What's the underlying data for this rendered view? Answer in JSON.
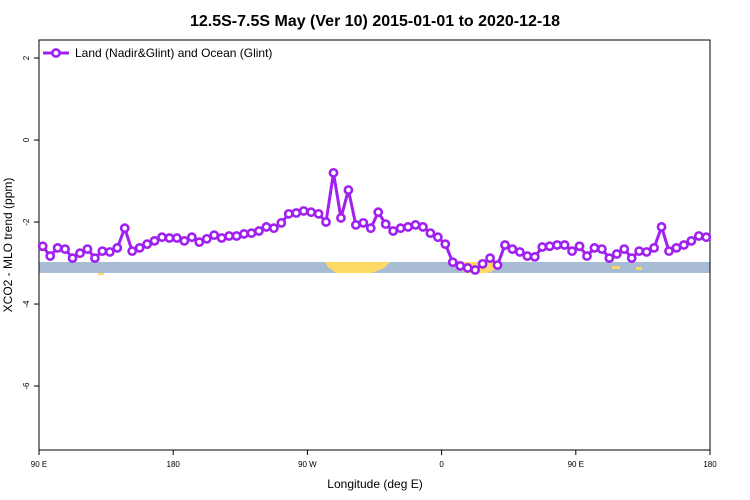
{
  "chart_data": {
    "type": "line",
    "title": "12.5S-7.5S May (Ver 10)   2015-01-01 to 2020-12-18",
    "xlabel": "Longitude (deg E)",
    "ylabel": "XCO2 - MLO trend (ppm)",
    "x": [
      92.5,
      97.5,
      102.5,
      107.5,
      112.5,
      117.5,
      122.5,
      127.5,
      132.5,
      137.5,
      142.5,
      147.5,
      152.5,
      157.5,
      162.5,
      167.5,
      172.5,
      177.5,
      182.5,
      187.5,
      192.5,
      197.5,
      202.5,
      207.5,
      212.5,
      217.5,
      222.5,
      227.5,
      232.5,
      237.5,
      242.5,
      247.5,
      252.5,
      257.5,
      262.5,
      267.5,
      272.5,
      277.5,
      282.5,
      287.5,
      292.5,
      297.5,
      302.5,
      307.5,
      312.5,
      317.5,
      322.5,
      327.5,
      332.5,
      337.5,
      342.5,
      347.5,
      352.5,
      357.5,
      362.5,
      367.5,
      372.5,
      377.5,
      382.5,
      387.5,
      392.5,
      397.5,
      402.5,
      407.5,
      412.5,
      417.5,
      422.5,
      427.5,
      432.5,
      437.5,
      442.5,
      447.5,
      452.5,
      457.5,
      462.5,
      467.5,
      472.5,
      477.5,
      482.5,
      487.5,
      492.5,
      497.5,
      502.5,
      507.5,
      512.5,
      517.5,
      522.5,
      527.5,
      532.5,
      537.5
    ],
    "series": [
      {
        "name": "Land (Nadir&Glint) and Ocean (Glint)",
        "color": "#a020f0",
        "values": [
          -2.59,
          -2.83,
          -2.63,
          -2.66,
          -2.88,
          -2.76,
          -2.66,
          -2.88,
          -2.71,
          -2.73,
          -2.63,
          -2.15,
          -2.71,
          -2.63,
          -2.54,
          -2.46,
          -2.37,
          -2.39,
          -2.39,
          -2.46,
          -2.37,
          -2.49,
          -2.41,
          -2.32,
          -2.39,
          -2.34,
          -2.34,
          -2.29,
          -2.27,
          -2.22,
          -2.12,
          -2.15,
          -2.02,
          -1.8,
          -1.78,
          -1.73,
          -1.76,
          -1.8,
          -2.0,
          -0.8,
          -1.9,
          -1.22,
          -2.07,
          -2.02,
          -2.15,
          -1.76,
          -2.05,
          -2.22,
          -2.15,
          -2.12,
          -2.07,
          -2.12,
          -2.27,
          -2.37,
          -2.54,
          -2.98,
          -3.07,
          -3.12,
          -3.17,
          -3.02,
          -2.88,
          -3.05,
          -2.56,
          -2.66,
          -2.73,
          -2.83,
          -2.85,
          -2.61,
          -2.59,
          -2.56,
          -2.56,
          -2.71,
          -2.59,
          -2.83,
          -2.63,
          -2.66,
          -2.88,
          -2.78,
          -2.66,
          -2.88,
          -2.71,
          -2.73,
          -2.63,
          -2.12,
          -2.71,
          -2.63,
          -2.56,
          -2.46,
          -2.34,
          -2.37
        ]
      }
    ],
    "xlim": [
      90,
      540
    ],
    "xticks": [
      {
        "value": 90,
        "label": "90 E"
      },
      180,
      {
        "value": 270,
        "label": "90 W"
      },
      {
        "value": 360,
        "label": "0"
      },
      {
        "value": 450,
        "label": "90 E"
      },
      {
        "value": 540,
        "label": "180"
      }
    ],
    "ylim": [
      -7.56,
      2.44
    ],
    "yticks": [
      2,
      0,
      -2,
      -4,
      -6
    ],
    "legend": "upper left"
  }
}
